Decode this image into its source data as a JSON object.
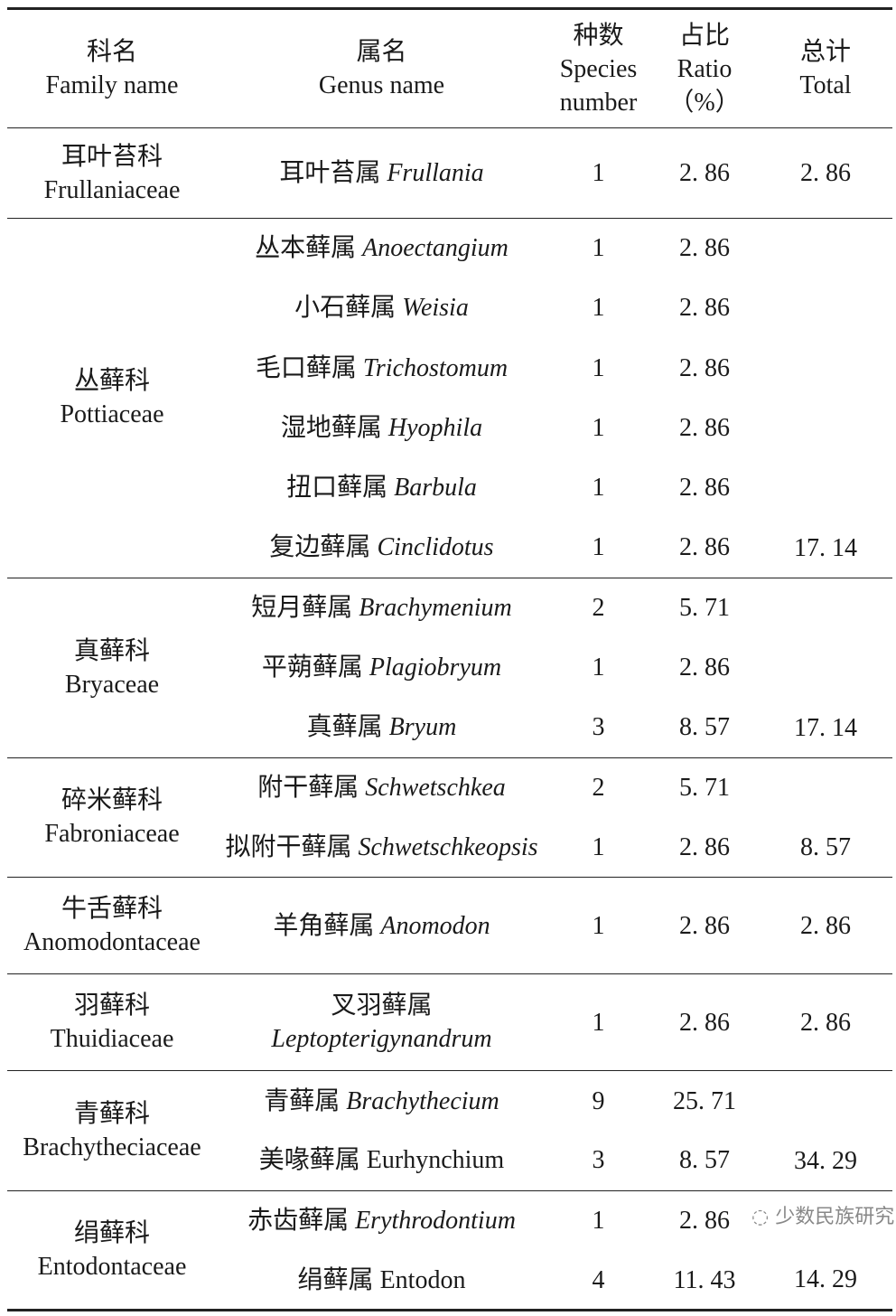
{
  "header": {
    "family": [
      "科名",
      "Family name"
    ],
    "genus": [
      "属名",
      "Genus name"
    ],
    "species": [
      "种数",
      "Species",
      "number"
    ],
    "ratio": [
      "占比",
      "Ratio",
      "（%）"
    ],
    "total": [
      "总计",
      "Total"
    ]
  },
  "groups": [
    {
      "family_cn": "耳叶苔科",
      "family_en": "Frullaniaceae",
      "total": "2. 86",
      "rows": [
        {
          "cn": "耳叶苔属",
          "latin": "Frullania",
          "italic": true,
          "species": "1",
          "ratio": "2. 86"
        }
      ]
    },
    {
      "family_cn": "丛藓科",
      "family_en": "Pottiaceae",
      "total": "17. 14",
      "rows": [
        {
          "cn": "丛本藓属",
          "latin": "Anoectangium",
          "italic": true,
          "species": "1",
          "ratio": "2. 86"
        },
        {
          "cn": "小石藓属",
          "latin": "Weisia",
          "italic": true,
          "species": "1",
          "ratio": "2. 86"
        },
        {
          "cn": "毛口藓属",
          "latin": "Trichostomum",
          "italic": true,
          "species": "1",
          "ratio": "2. 86"
        },
        {
          "cn": "湿地藓属",
          "latin": "Hyophila",
          "italic": true,
          "species": "1",
          "ratio": "2. 86"
        },
        {
          "cn": "扭口藓属",
          "latin": "Barbula",
          "italic": true,
          "species": "1",
          "ratio": "2. 86"
        },
        {
          "cn": "复边藓属",
          "latin": "Cinclidotus",
          "italic": true,
          "species": "1",
          "ratio": "2. 86"
        }
      ]
    },
    {
      "family_cn": "真藓科",
      "family_en": "Bryaceae",
      "total": "17. 14",
      "rows": [
        {
          "cn": "短月藓属",
          "latin": "Brachymenium",
          "italic": true,
          "species": "2",
          "ratio": "5. 71"
        },
        {
          "cn": "平蒴藓属",
          "latin": "Plagiobryum",
          "italic": true,
          "species": "1",
          "ratio": "2. 86"
        },
        {
          "cn": "真藓属",
          "latin": "Bryum",
          "italic": true,
          "species": "3",
          "ratio": "8. 57"
        }
      ]
    },
    {
      "family_cn": "碎米藓科",
      "family_en": "Fabroniaceae",
      "total": "8. 57",
      "rows": [
        {
          "cn": "附干藓属",
          "latin": "Schwetschkea",
          "italic": true,
          "species": "2",
          "ratio": "5. 71"
        },
        {
          "cn": "拟附干藓属",
          "latin": "Schwetschkeopsis",
          "italic": true,
          "species": "1",
          "ratio": "2. 86"
        }
      ]
    },
    {
      "family_cn": "牛舌藓科",
      "family_en": "Anomodontaceae",
      "total": "2. 86",
      "rows": [
        {
          "cn": "羊角藓属",
          "latin": "Anomodon",
          "italic": true,
          "species": "1",
          "ratio": "2. 86"
        }
      ]
    },
    {
      "family_cn": "羽藓科",
      "family_en": "Thuidiaceae",
      "total": "2. 86",
      "rows": [
        {
          "cn": "叉羽藓属",
          "latin": "Leptopterigynandrum",
          "italic": true,
          "wrap": true,
          "species": "1",
          "ratio": "2. 86"
        }
      ]
    },
    {
      "family_cn": "青藓科",
      "family_en": "Brachytheciaceae",
      "total": "34. 29",
      "rows": [
        {
          "cn": "青藓属",
          "latin": "Brachythecium",
          "italic": true,
          "species": "9",
          "ratio": "25. 71"
        },
        {
          "cn": "美喙藓属",
          "latin": "Eurhynchium",
          "italic": false,
          "species": "3",
          "ratio": "8. 57"
        }
      ]
    },
    {
      "family_cn": "绢藓科",
      "family_en": "Entodontaceae",
      "total": "14. 29",
      "rows": [
        {
          "cn": "赤齿藓属",
          "latin": "Erythrodontium",
          "italic": true,
          "species": "1",
          "ratio": "2. 86"
        },
        {
          "cn": "绢藓属",
          "latin": "Entodon",
          "italic": false,
          "species": "4",
          "ratio": "11. 43"
        }
      ]
    }
  ],
  "watermark": "少数民族研究"
}
